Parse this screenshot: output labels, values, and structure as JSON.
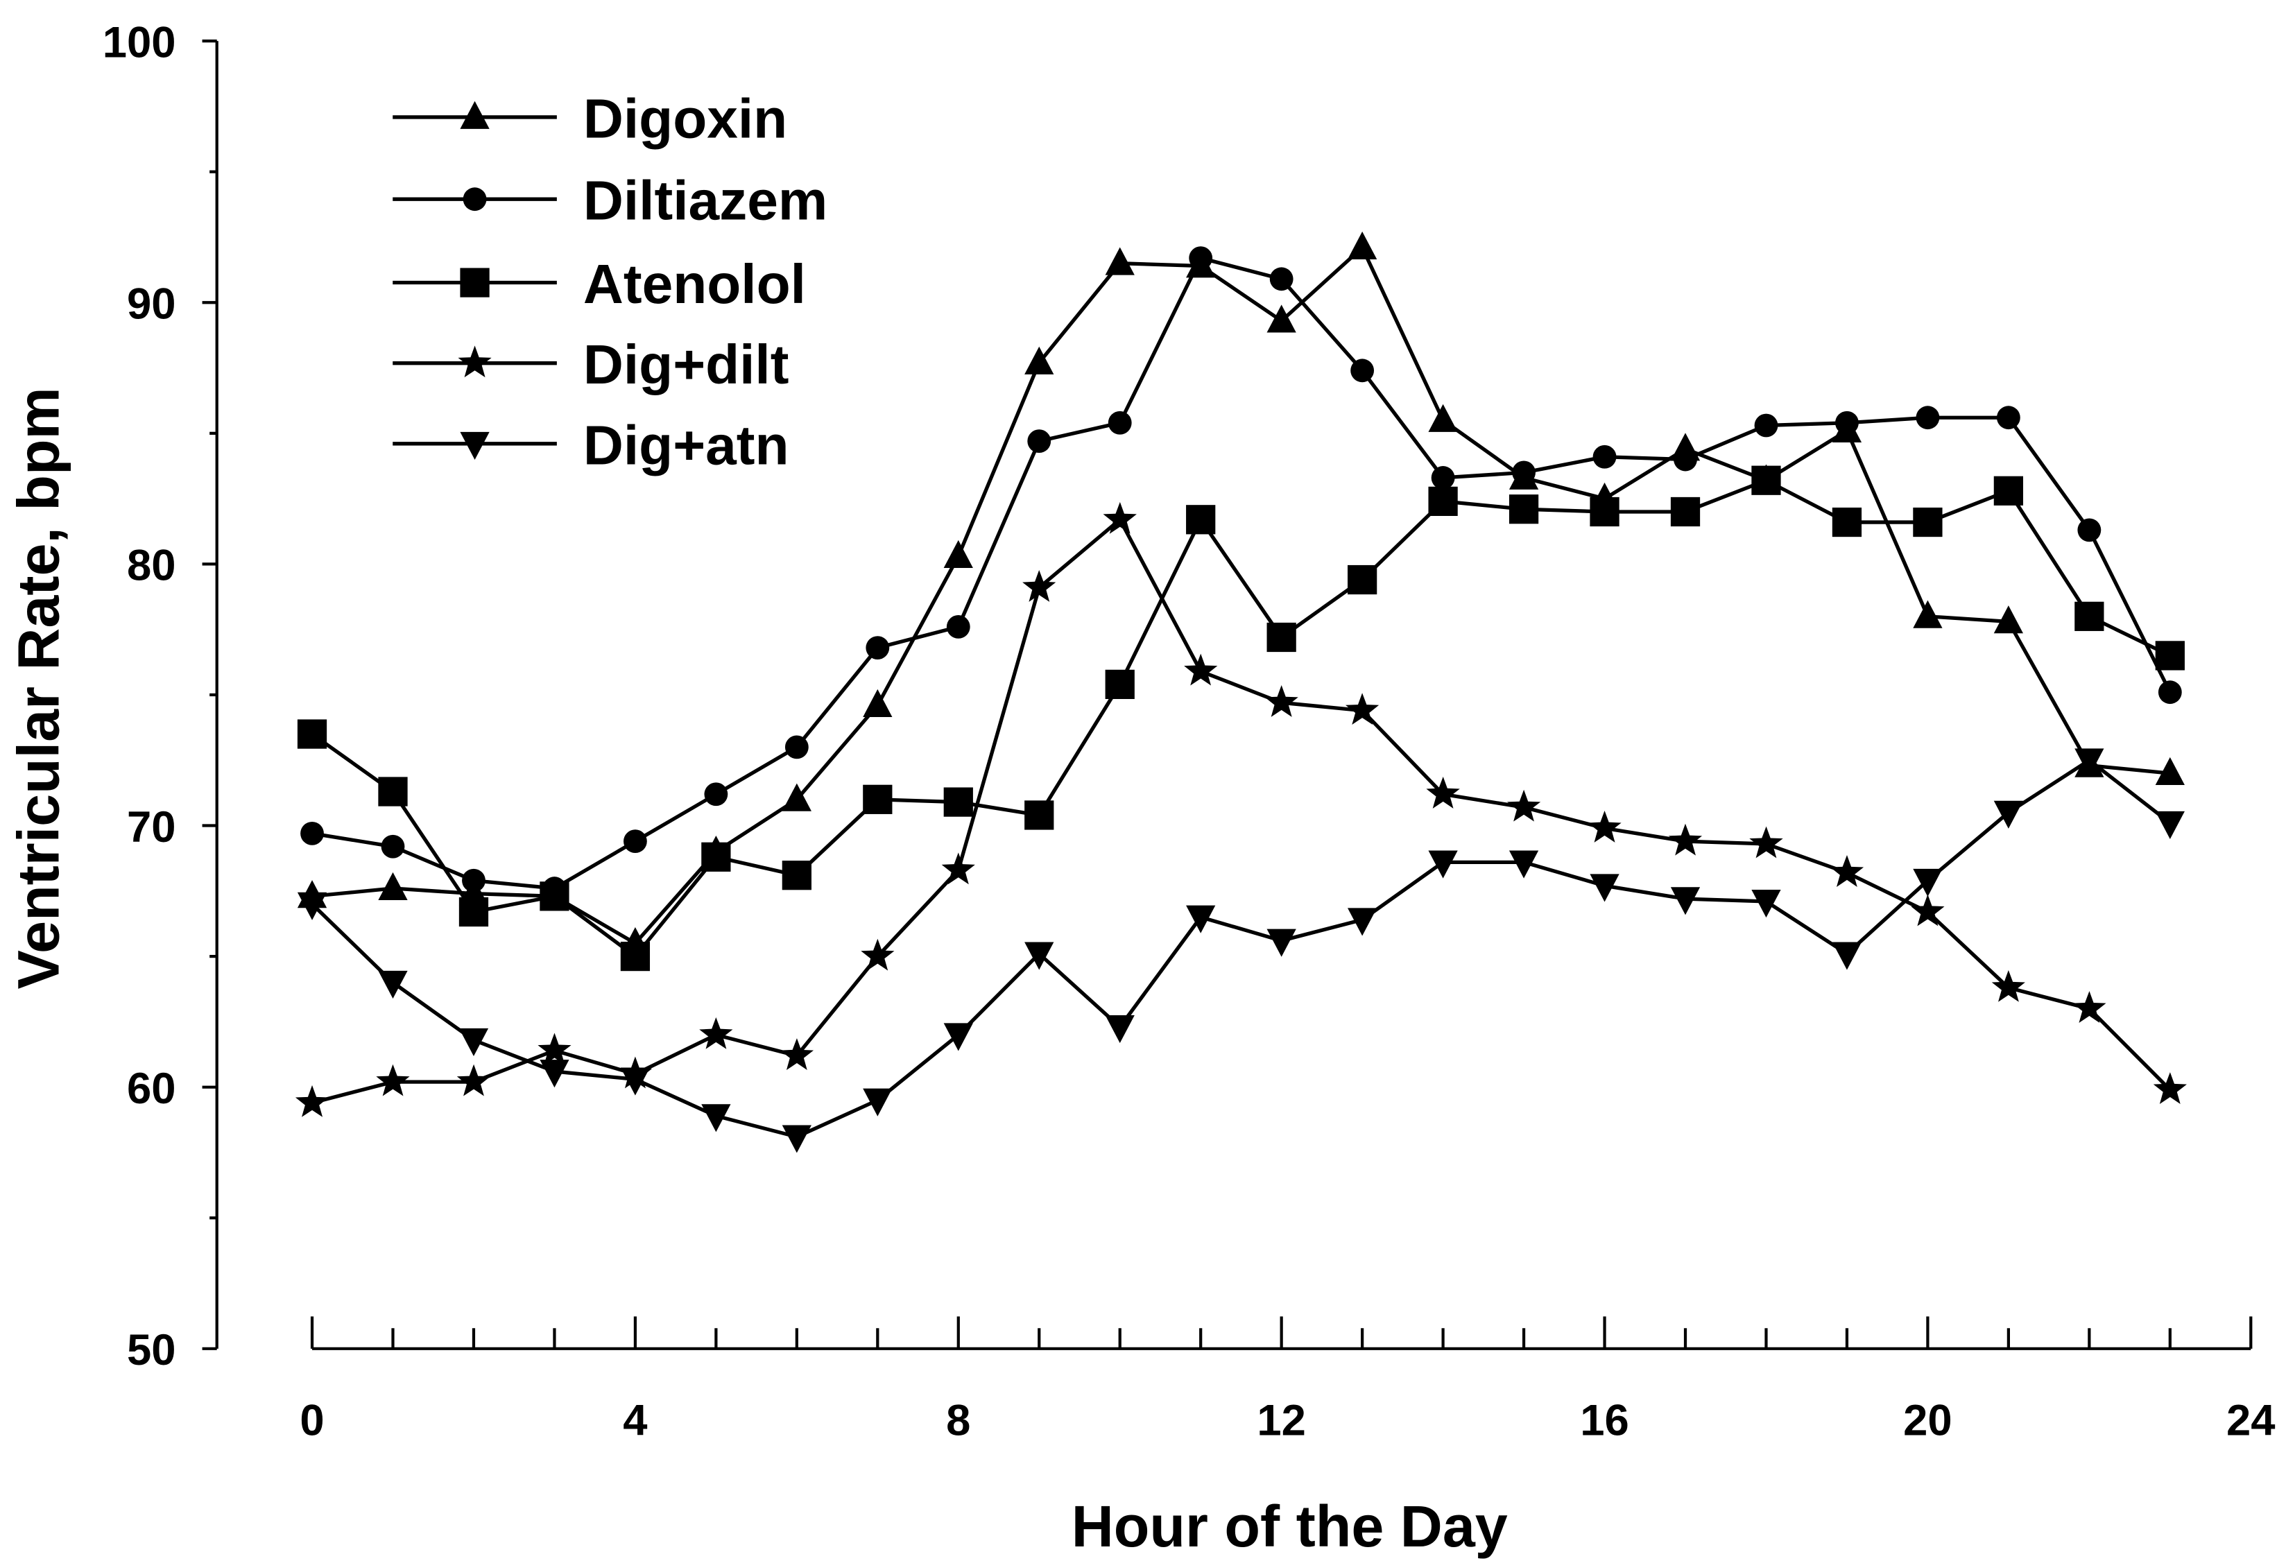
{
  "chart_data": {
    "type": "line",
    "title": "",
    "xlabel": "Hour of the Day",
    "ylabel": "Ventricular Rate, bpm",
    "xlim": [
      0,
      24
    ],
    "ylim": [
      50,
      100
    ],
    "xticks": [
      "0",
      "4",
      "8",
      "12",
      "16",
      "20",
      "24"
    ],
    "yticks": [
      "50",
      "60",
      "70",
      "80",
      "90",
      "100"
    ],
    "grid": false,
    "legend_position": "top-left",
    "x": [
      0,
      1,
      2,
      3,
      4,
      5,
      6,
      7,
      8,
      9,
      10,
      11,
      12,
      13,
      14,
      15,
      16,
      17,
      18,
      19,
      20,
      21,
      22,
      23
    ],
    "series": [
      {
        "name": "Digoxin",
        "marker": "triangle-up",
        "values": [
          67.3,
          67.6,
          67.4,
          67.3,
          65.5,
          69.0,
          71.0,
          74.6,
          80.3,
          87.7,
          91.5,
          91.4,
          89.3,
          92.1,
          85.5,
          83.3,
          82.5,
          84.4,
          83.2,
          85.1,
          78.0,
          77.8,
          72.3,
          72.0
        ]
      },
      {
        "name": "Diltiazem",
        "marker": "circle",
        "values": [
          69.7,
          69.2,
          67.9,
          67.6,
          69.4,
          71.2,
          73.0,
          76.8,
          77.6,
          84.7,
          85.4,
          91.7,
          90.9,
          87.4,
          83.3,
          83.5,
          84.1,
          84.0,
          85.3,
          85.4,
          85.6,
          85.6,
          81.3,
          75.1
        ]
      },
      {
        "name": "Atenolol",
        "marker": "square",
        "values": [
          73.5,
          71.3,
          66.7,
          67.3,
          65.0,
          68.8,
          68.1,
          71.0,
          70.9,
          70.4,
          75.4,
          81.7,
          77.2,
          79.4,
          82.4,
          82.1,
          82.0,
          82.0,
          83.2,
          81.6,
          81.6,
          82.8,
          78.0,
          76.5
        ]
      },
      {
        "name": "Dig+dilt",
        "marker": "star",
        "values": [
          59.4,
          60.2,
          60.2,
          61.4,
          60.5,
          62.0,
          61.2,
          65.0,
          68.3,
          79.1,
          81.7,
          75.9,
          74.7,
          74.4,
          71.2,
          70.7,
          69.9,
          69.4,
          69.3,
          68.2,
          66.7,
          63.8,
          63.0,
          59.9
        ]
      },
      {
        "name": "Dig+atn",
        "marker": "triangle-down",
        "values": [
          67.0,
          64.0,
          61.8,
          60.6,
          60.3,
          58.9,
          58.1,
          59.5,
          62.0,
          65.1,
          62.3,
          66.5,
          65.6,
          66.4,
          68.6,
          68.6,
          67.7,
          67.2,
          67.1,
          65.1,
          67.9,
          70.5,
          72.5,
          70.1
        ]
      }
    ]
  }
}
